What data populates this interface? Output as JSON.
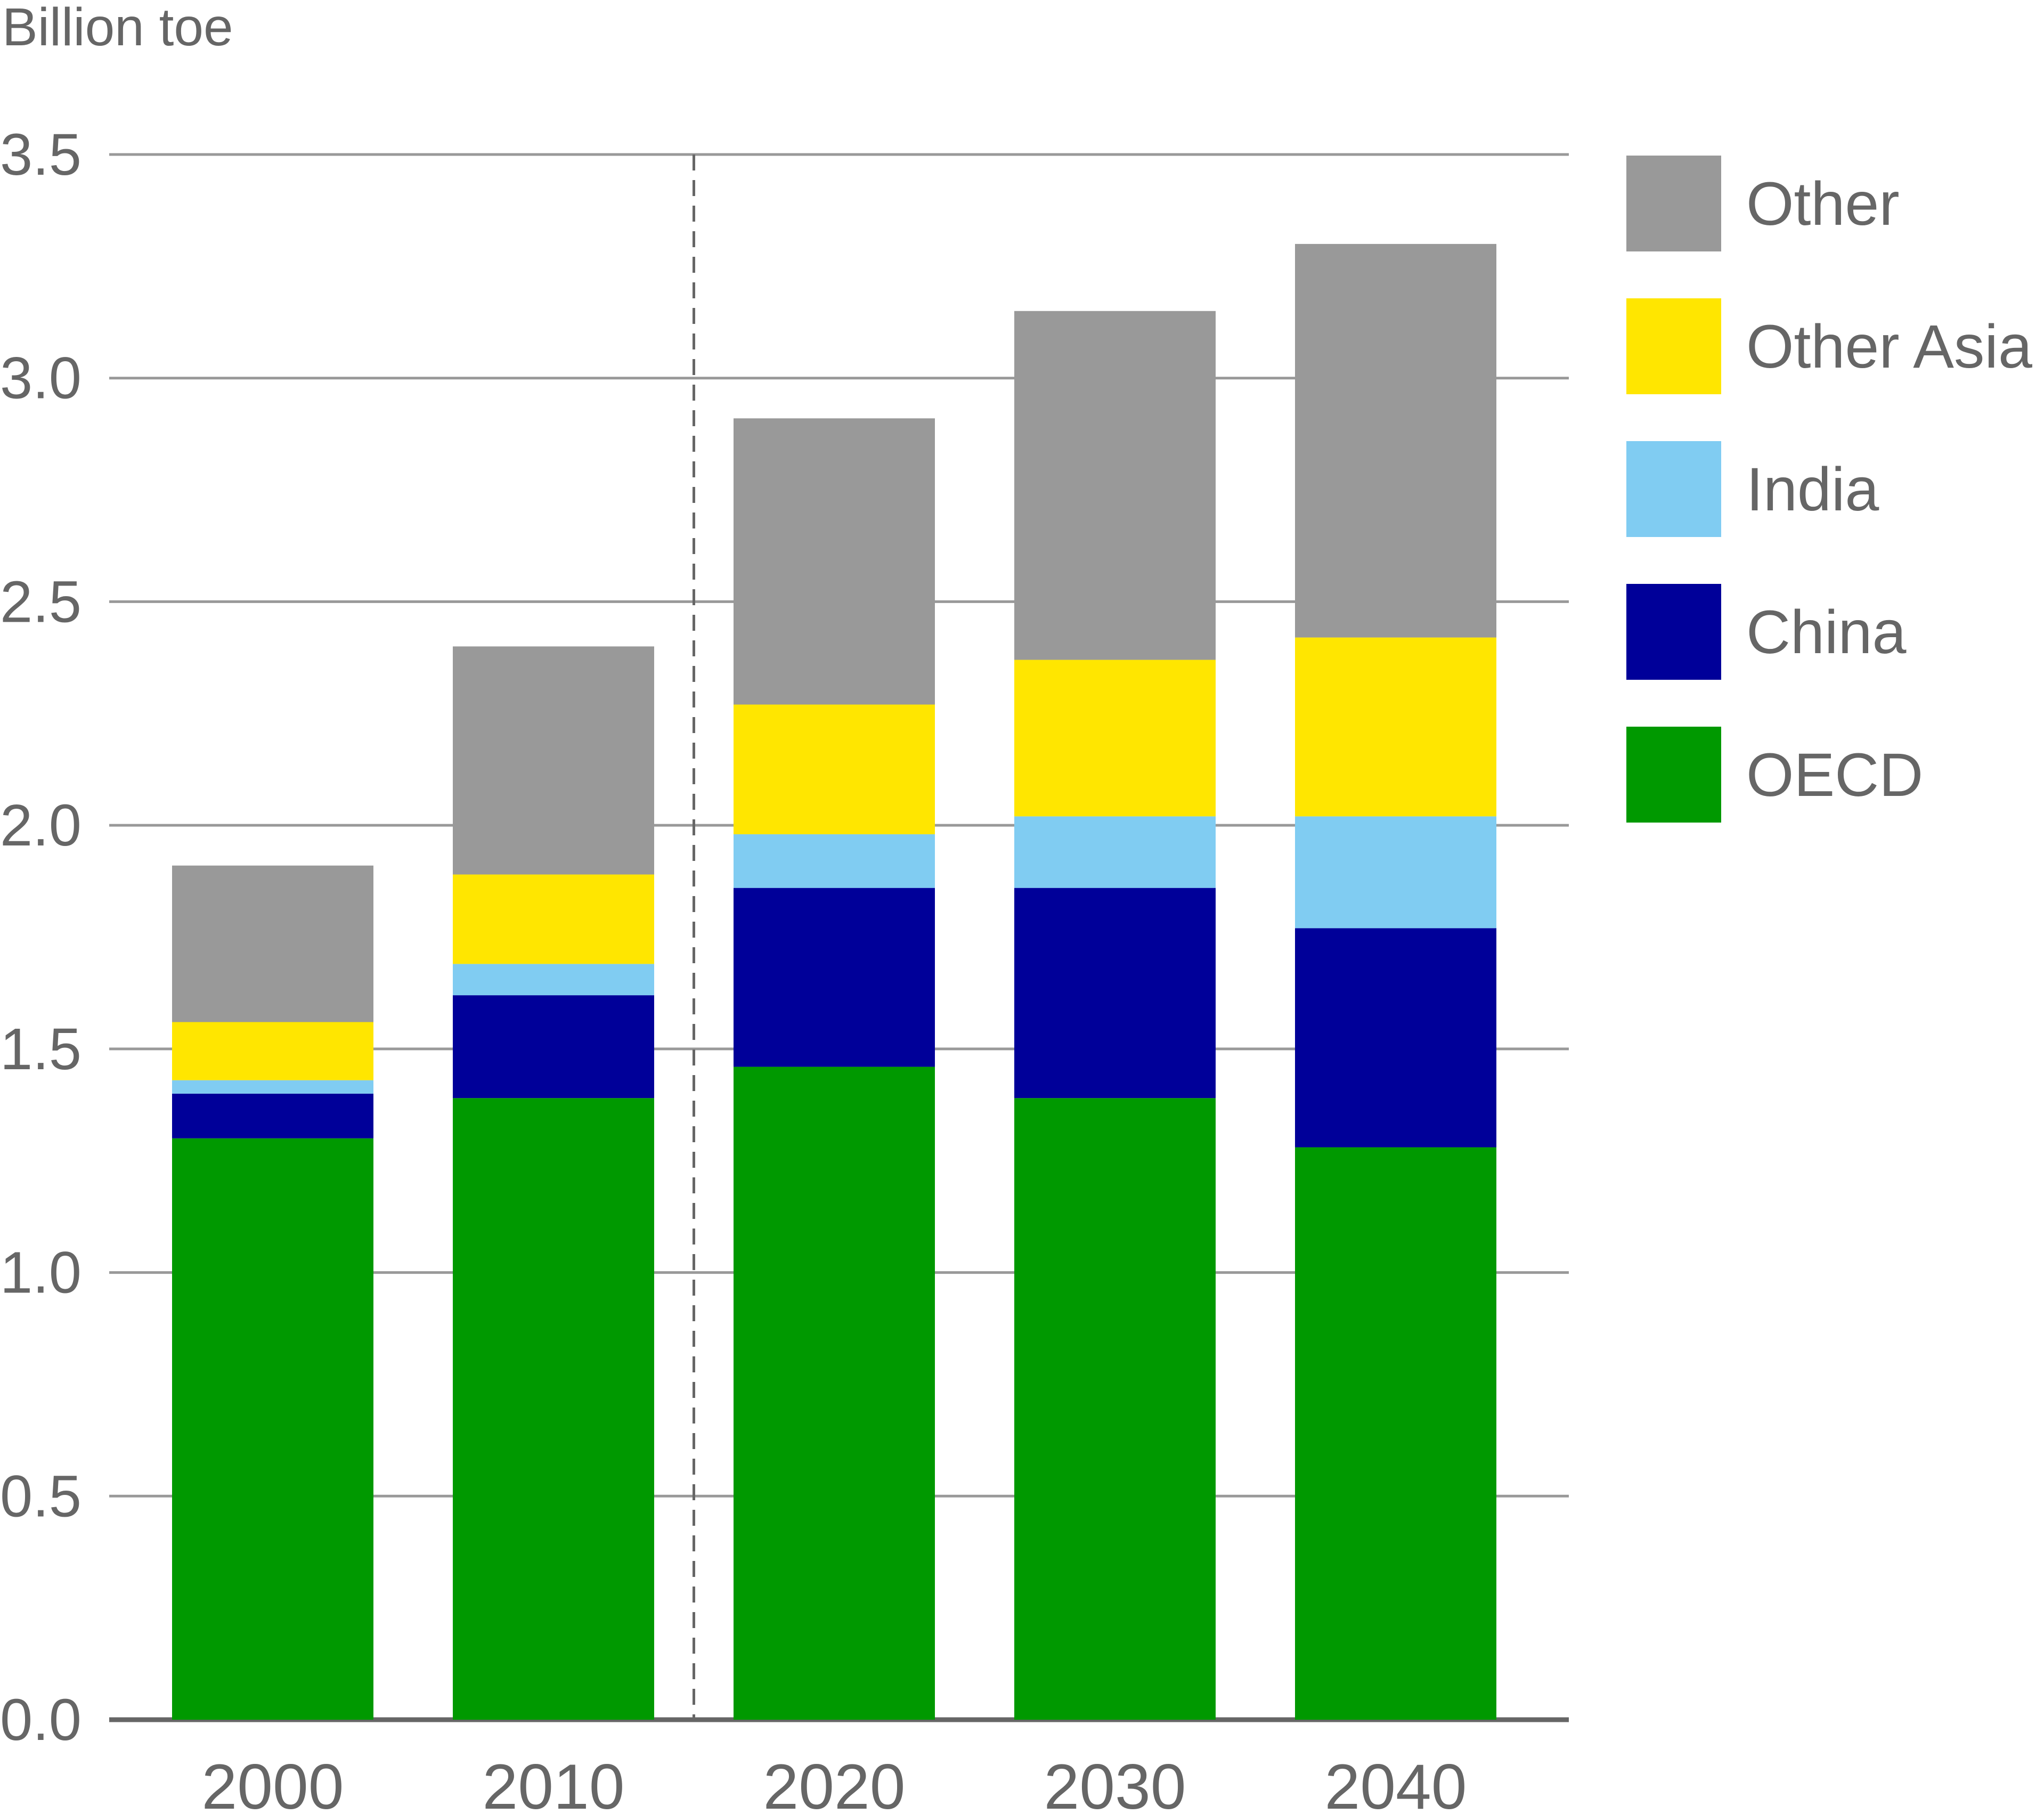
{
  "chart_data": {
    "type": "bar",
    "stacked": true,
    "ylabel": "Billion toe",
    "ylim": [
      0,
      3.5
    ],
    "yticks": [
      "0.0",
      "0.5",
      "1.0",
      "1.5",
      "2.0",
      "2.5",
      "3.0",
      "3.5"
    ],
    "categories": [
      "2000",
      "2010",
      "2020",
      "2030",
      "2040"
    ],
    "grid": true,
    "divider_after_category": "2010",
    "legend_position": "right",
    "series": [
      {
        "name": "OECD",
        "color": "#009900",
        "values": [
          1.3,
          1.39,
          1.46,
          1.39,
          1.28
        ]
      },
      {
        "name": "China",
        "color": "#000099",
        "values": [
          0.1,
          0.23,
          0.4,
          0.47,
          0.49
        ]
      },
      {
        "name": "India",
        "color": "#80ccf2",
        "values": [
          0.03,
          0.07,
          0.12,
          0.16,
          0.25
        ]
      },
      {
        "name": "Other Asia",
        "color": "#ffe600",
        "values": [
          0.13,
          0.2,
          0.29,
          0.35,
          0.4
        ]
      },
      {
        "name": "Other",
        "color": "#999999",
        "values": [
          0.35,
          0.51,
          0.64,
          0.78,
          0.88
        ]
      }
    ]
  }
}
